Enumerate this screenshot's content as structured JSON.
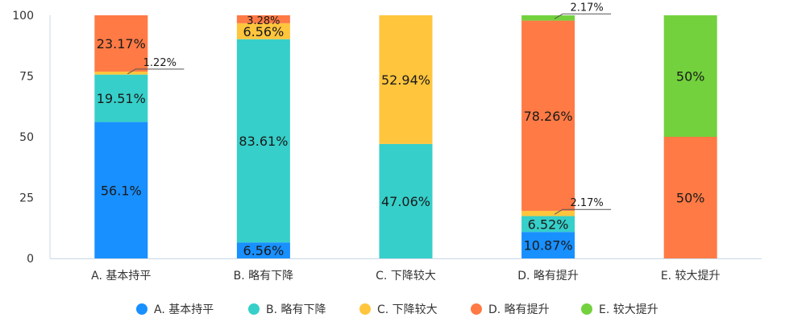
{
  "chart_data": {
    "type": "bar",
    "stacked": true,
    "percent_stacked": true,
    "categories": [
      "A. 基本持平",
      "B. 略有下降",
      "C. 下降较大",
      "D. 略有提升",
      "E. 较大提升"
    ],
    "series": [
      {
        "name": "A. 基本持平",
        "color": "#1890ff",
        "values": [
          56.1,
          6.56,
          0,
          10.87,
          0
        ],
        "labels": [
          "56.1%",
          "6.56%",
          "",
          "10.87%",
          ""
        ]
      },
      {
        "name": "B. 略有下降",
        "color": "#36cfc9",
        "values": [
          19.51,
          83.61,
          47.06,
          6.52,
          0
        ],
        "labels": [
          "19.51%",
          "83.61%",
          "47.06%",
          "6.52%",
          ""
        ]
      },
      {
        "name": "C. 下降较大",
        "color": "#ffc53d",
        "values": [
          1.22,
          6.56,
          52.94,
          2.17,
          0
        ],
        "labels": [
          "1.22%",
          "6.56%",
          "52.94%",
          "2.17%",
          ""
        ]
      },
      {
        "name": "D. 略有提升",
        "color": "#ff7a45",
        "values": [
          23.17,
          3.28,
          0,
          78.26,
          50
        ],
        "labels": [
          "23.17%",
          "3.28%",
          "",
          "78.26%",
          "50%"
        ]
      },
      {
        "name": "E. 较大提升",
        "color": "#73d13d",
        "values": [
          0,
          0,
          0,
          2.17,
          50
        ],
        "labels": [
          "",
          "",
          "",
          "2.17%",
          "50%"
        ]
      }
    ],
    "yticks": [
      "0",
      "25",
      "50",
      "75",
      "100"
    ],
    "ylim": [
      0,
      100
    ],
    "grid": false,
    "legend": "bottom"
  }
}
